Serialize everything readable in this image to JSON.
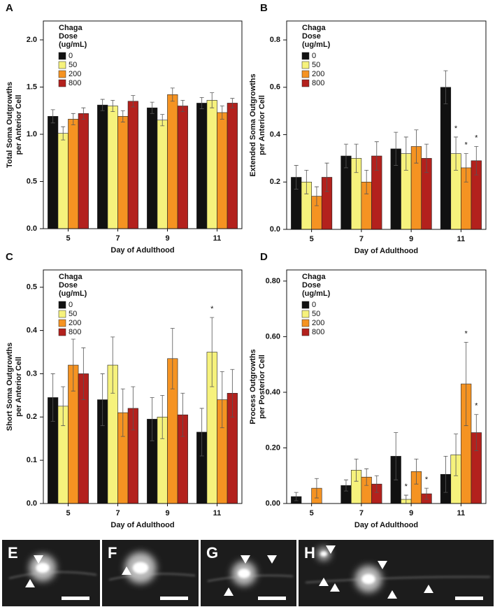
{
  "chart_data": [
    {
      "type": "bar",
      "panel": "A",
      "ylabel": [
        "Total Soma Outgrowths",
        "per Anterior Cell"
      ],
      "xlabel": "Day of Adulthood",
      "categories": [
        "5",
        "7",
        "9",
        "11"
      ],
      "legend_title": [
        "Chaga",
        "Dose",
        "(ug/mL)"
      ],
      "ylim": [
        0,
        2.2
      ],
      "yticks": [
        {
          "value": 0,
          "label": "0.0"
        },
        {
          "value": 0.5,
          "label": "0.5"
        },
        {
          "value": 1,
          "label": "1.0"
        },
        {
          "value": 1.5,
          "label": "1.5"
        },
        {
          "value": 2,
          "label": "2.0"
        }
      ],
      "series": [
        {
          "name": "0",
          "color": "#111111",
          "values": [
            1.19,
            1.31,
            1.28,
            1.33
          ],
          "errors": [
            0.07,
            0.06,
            0.06,
            0.06
          ]
        },
        {
          "name": "50",
          "color": "#f6f27c",
          "values": [
            1.01,
            1.3,
            1.15,
            1.36
          ],
          "errors": [
            0.07,
            0.06,
            0.06,
            0.08
          ]
        },
        {
          "name": "200",
          "color": "#f59322",
          "values": [
            1.16,
            1.19,
            1.42,
            1.23
          ],
          "errors": [
            0.06,
            0.06,
            0.07,
            0.07
          ]
        },
        {
          "name": "800",
          "color": "#b3211d",
          "values": [
            1.22,
            1.35,
            1.3,
            1.33
          ],
          "errors": [
            0.06,
            0.06,
            0.06,
            0.05
          ]
        }
      ]
    },
    {
      "type": "bar",
      "panel": "B",
      "ylabel": [
        "Extended Soma Outgrowths",
        "per Anterior Cell"
      ],
      "xlabel": "Day of Adulthood",
      "categories": [
        "5",
        "7",
        "9",
        "11"
      ],
      "legend_title": [
        "Chaga",
        "Dose",
        "(ug/mL)"
      ],
      "ylim": [
        0,
        0.88
      ],
      "yticks": [
        {
          "value": 0,
          "label": "0.0"
        },
        {
          "value": 0.2,
          "label": "0.2"
        },
        {
          "value": 0.4,
          "label": "0.4"
        },
        {
          "value": 0.6,
          "label": "0.6"
        },
        {
          "value": 0.8,
          "label": "0.8"
        }
      ],
      "series": [
        {
          "name": "0",
          "color": "#111111",
          "values": [
            0.22,
            0.31,
            0.34,
            0.6
          ],
          "errors": [
            0.05,
            0.05,
            0.07,
            0.07
          ]
        },
        {
          "name": "50",
          "color": "#f6f27c",
          "values": [
            0.2,
            0.3,
            0.32,
            0.32
          ],
          "errors": [
            0.05,
            0.06,
            0.07,
            0.07
          ],
          "annotations": [
            null,
            null,
            null,
            "*"
          ]
        },
        {
          "name": "200",
          "color": "#f59322",
          "values": [
            0.14,
            0.2,
            0.35,
            0.26
          ],
          "errors": [
            0.04,
            0.05,
            0.07,
            0.06
          ],
          "annotations": [
            null,
            null,
            null,
            "*"
          ]
        },
        {
          "name": "800",
          "color": "#b3211d",
          "values": [
            0.22,
            0.31,
            0.3,
            0.29
          ],
          "errors": [
            0.06,
            0.06,
            0.06,
            0.06
          ],
          "annotations": [
            null,
            null,
            null,
            "*"
          ]
        }
      ]
    },
    {
      "type": "bar",
      "panel": "C",
      "ylabel": [
        "Short Soma Outgrowths",
        "per Anterior Cell"
      ],
      "xlabel": "Day of Adulthood",
      "categories": [
        "5",
        "7",
        "9",
        "11"
      ],
      "legend_title": [
        "Chaga",
        "Dose",
        "(ug/mL)"
      ],
      "ylim": [
        0,
        0.54
      ],
      "yticks": [
        {
          "value": 0,
          "label": "0.0"
        },
        {
          "value": 0.1,
          "label": "0.1"
        },
        {
          "value": 0.2,
          "label": "0.2"
        },
        {
          "value": 0.3,
          "label": "0.3"
        },
        {
          "value": 0.4,
          "label": "0.4"
        },
        {
          "value": 0.5,
          "label": "0.5"
        }
      ],
      "series": [
        {
          "name": "0",
          "color": "#111111",
          "values": [
            0.245,
            0.24,
            0.195,
            0.165
          ],
          "errors": [
            0.055,
            0.06,
            0.05,
            0.055
          ]
        },
        {
          "name": "50",
          "color": "#f6f27c",
          "values": [
            0.225,
            0.32,
            0.2,
            0.35
          ],
          "errors": [
            0.045,
            0.065,
            0.05,
            0.08
          ],
          "annotations": [
            null,
            null,
            null,
            "*"
          ]
        },
        {
          "name": "200",
          "color": "#f59322",
          "values": [
            0.32,
            0.21,
            0.335,
            0.24
          ],
          "errors": [
            0.06,
            0.055,
            0.07,
            0.065
          ]
        },
        {
          "name": "800",
          "color": "#b3211d",
          "values": [
            0.3,
            0.22,
            0.205,
            0.255
          ],
          "errors": [
            0.06,
            0.05,
            0.05,
            0.055
          ]
        }
      ]
    },
    {
      "type": "bar",
      "panel": "D",
      "ylabel": [
        "Process Outgrowths",
        "per Posterior Cell"
      ],
      "xlabel": "Day of Adulthood",
      "categories": [
        "5",
        "7",
        "9",
        "11"
      ],
      "legend_title": [
        "Chaga",
        "Dose",
        "(ug/mL)"
      ],
      "ylim": [
        0,
        0.84
      ],
      "yticks": [
        {
          "value": 0,
          "label": "0.00"
        },
        {
          "value": 0.2,
          "label": "0.20"
        },
        {
          "value": 0.4,
          "label": "0.40"
        },
        {
          "value": 0.6,
          "label": "0.60"
        },
        {
          "value": 0.8,
          "label": "0.80"
        }
      ],
      "series": [
        {
          "name": "0",
          "color": "#111111",
          "values": [
            0.025,
            0.065,
            0.17,
            0.105
          ],
          "errors": [
            0.015,
            0.02,
            0.085,
            0.065
          ]
        },
        {
          "name": "50",
          "color": "#f6f27c",
          "values": [
            0,
            0.12,
            0.015,
            0.175
          ],
          "errors": [
            0,
            0.04,
            0.015,
            0.075
          ],
          "annotations": [
            null,
            null,
            "*",
            null
          ]
        },
        {
          "name": "200",
          "color": "#f59322",
          "values": [
            0.055,
            0.095,
            0.115,
            0.43
          ],
          "errors": [
            0.035,
            0.03,
            0.045,
            0.15
          ],
          "annotations": [
            null,
            null,
            null,
            "*"
          ]
        },
        {
          "name": "800",
          "color": "#b3211d",
          "values": [
            0,
            0.07,
            0.035,
            0.255
          ],
          "errors": [
            0,
            0.03,
            0.02,
            0.065
          ],
          "annotations": [
            null,
            null,
            "*",
            "*"
          ]
        }
      ]
    }
  ],
  "micrographs": [
    {
      "label": "E"
    },
    {
      "label": "F"
    },
    {
      "label": "G"
    },
    {
      "label": "H"
    }
  ]
}
